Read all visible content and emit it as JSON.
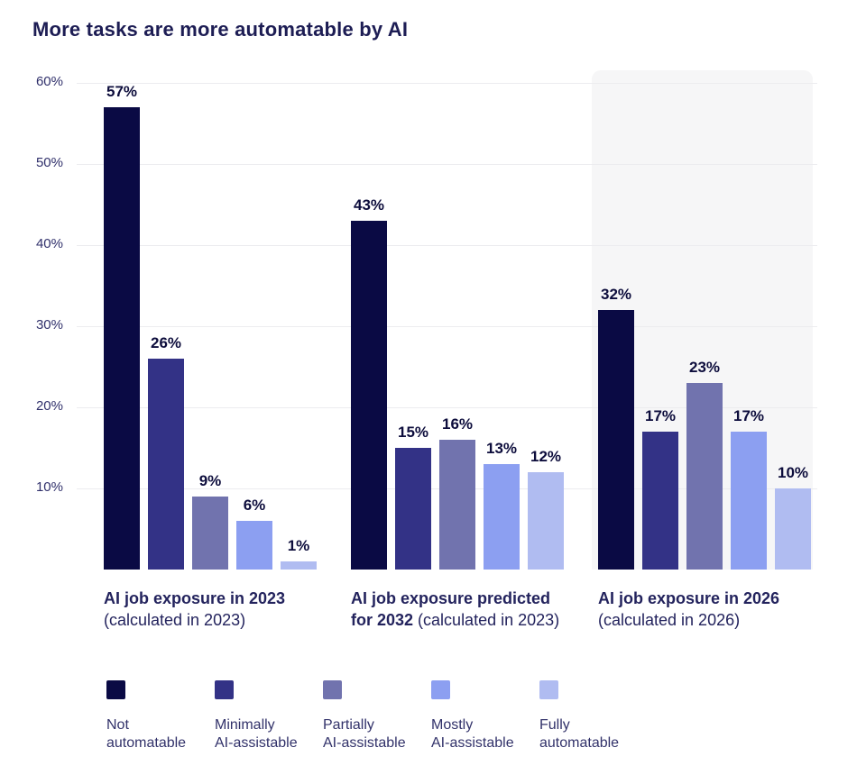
{
  "page": {
    "title": "More tasks are more automatable by AI"
  },
  "chart_data": {
    "type": "bar",
    "title": "More tasks are more automatable by AI",
    "xlabel": "",
    "ylabel": "",
    "value_suffix": "%",
    "ylim": [
      0,
      61
    ],
    "grid": true,
    "legend_position": "bottom",
    "highlight_panel_color": "#f6f6f7",
    "yticks": [
      "10%",
      "20%",
      "30%",
      "40%",
      "50%",
      "60%"
    ],
    "categories": [
      "AI job exposure in 2023 (calculated in 2023)",
      "AI job exposure predicted for 2032 (calculated in 2023)",
      "AI job exposure in 2026 (calculated in 2026)"
    ],
    "series": [
      {
        "name": "Not automatable",
        "color": "#0a0a44",
        "legend_lines": [
          "Not",
          "automatable"
        ],
        "values": [
          57,
          43,
          32
        ]
      },
      {
        "name": "Minimally AI-assistable",
        "color": "#333286",
        "legend_lines": [
          "Minimally",
          "AI-assistable"
        ],
        "values": [
          26,
          15,
          17
        ]
      },
      {
        "name": "Partially AI-assistable",
        "color": "#7173ae",
        "legend_lines": [
          "Partially",
          "AI-assistable"
        ],
        "values": [
          9,
          16,
          23
        ]
      },
      {
        "name": "Mostly AI-assistable",
        "color": "#8c9ff1",
        "legend_lines": [
          "Mostly",
          "AI-assistable"
        ],
        "values": [
          6,
          13,
          17
        ]
      },
      {
        "name": "Fully automatable",
        "color": "#b0bcf1",
        "legend_lines": [
          "Fully",
          "automatable"
        ],
        "values": [
          1,
          12,
          10
        ]
      }
    ],
    "groups": [
      {
        "highlight": false,
        "label_lines": [
          [
            {
              "text": "AI job exposure in 2023",
              "bold": true
            }
          ],
          [
            {
              "text": "(calculated in 2023)",
              "bold": false
            }
          ]
        ]
      },
      {
        "highlight": false,
        "label_lines": [
          [
            {
              "text": "AI job exposure predicted",
              "bold": true
            }
          ],
          [
            {
              "text": "for 2032",
              "bold": true
            },
            {
              "text": " (calculated in 2023)",
              "bold": false
            }
          ]
        ]
      },
      {
        "highlight": true,
        "label_lines": [
          [
            {
              "text": "AI job exposure in 2026",
              "bold": true
            }
          ],
          [
            {
              "text": "(calculated in 2026)",
              "bold": false
            }
          ]
        ]
      }
    ]
  }
}
